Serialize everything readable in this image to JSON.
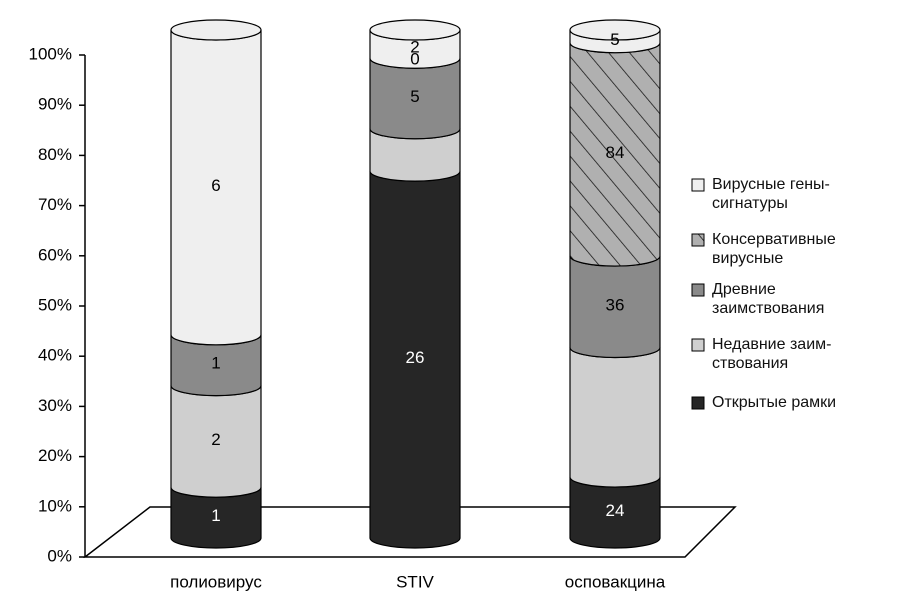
{
  "chart_data": {
    "type": "bar",
    "stack": "percent",
    "shape": "cylinder",
    "categories": [
      "полиовирус",
      "STIV",
      "осповакцина"
    ],
    "ylim": [
      0,
      100
    ],
    "yticks": [
      {
        "value": 0,
        "label": "0%"
      },
      {
        "value": 10,
        "label": "10%"
      },
      {
        "value": 20,
        "label": "20%"
      },
      {
        "value": 30,
        "label": "30%"
      },
      {
        "value": 40,
        "label": "40%"
      },
      {
        "value": 50,
        "label": "50%"
      },
      {
        "value": 60,
        "label": "60%"
      },
      {
        "value": 70,
        "label": "70%"
      },
      {
        "value": 80,
        "label": "80%"
      },
      {
        "value": 90,
        "label": "90%"
      },
      {
        "value": 100,
        "label": "100%"
      }
    ],
    "legend": "right",
    "series": [
      {
        "name": "Открытые рамки",
        "color": "#262626",
        "values": [
          1,
          26,
          24
        ]
      },
      {
        "name": "Недавние заим-\nствования",
        "color": "#cfcfcf",
        "values": [
          2,
          3,
          51
        ],
        "value_labels": [
          "2",
          null,
          null
        ]
      },
      {
        "name": "Древние\nзаимствования",
        "color": "#8a8a8a",
        "values": [
          1,
          5,
          36
        ]
      },
      {
        "name": "Консервативные\nвирусные",
        "color": "#b0b0b0",
        "pattern": "hatch",
        "values": [
          0,
          0,
          84
        ],
        "value_labels": [
          null,
          "0",
          "84"
        ]
      },
      {
        "name": "Вирусные гены-\nсигнатуры",
        "color": "#efefef",
        "values": [
          6,
          2,
          5
        ]
      }
    ]
  }
}
